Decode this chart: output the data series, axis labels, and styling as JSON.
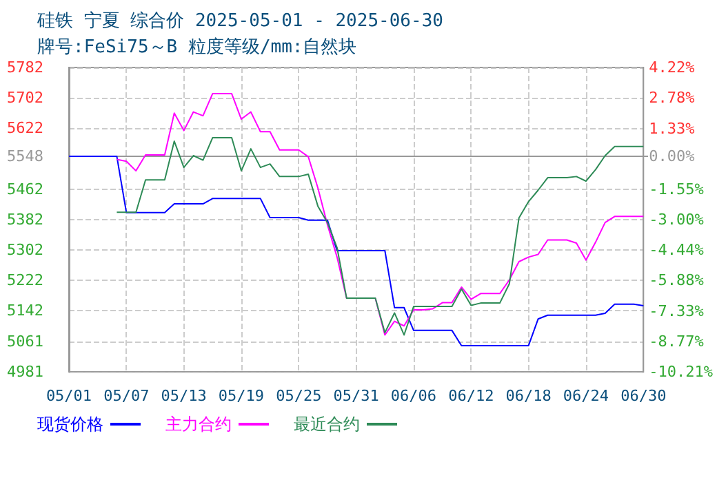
{
  "chart_data": {
    "type": "line",
    "title": "硅铁 宁夏 综合价 2025-05-01 - 2025-06-30",
    "subtitle": "牌号:FeSi75～B 粒度等级/mm:自然块",
    "x": [
      "2025-05-01",
      "2025-05-02",
      "2025-05-03",
      "2025-05-04",
      "2025-05-05",
      "2025-05-06",
      "2025-05-07",
      "2025-05-08",
      "2025-05-09",
      "2025-05-10",
      "2025-05-11",
      "2025-05-12",
      "2025-05-13",
      "2025-05-14",
      "2025-05-15",
      "2025-05-16",
      "2025-05-17",
      "2025-05-18",
      "2025-05-19",
      "2025-05-20",
      "2025-05-21",
      "2025-05-22",
      "2025-05-23",
      "2025-05-24",
      "2025-05-25",
      "2025-05-26",
      "2025-05-27",
      "2025-05-28",
      "2025-05-29",
      "2025-05-30",
      "2025-05-31",
      "2025-06-01",
      "2025-06-02",
      "2025-06-03",
      "2025-06-04",
      "2025-06-05",
      "2025-06-06",
      "2025-06-07",
      "2025-06-08",
      "2025-06-09",
      "2025-06-10",
      "2025-06-11",
      "2025-06-12",
      "2025-06-13",
      "2025-06-14",
      "2025-06-15",
      "2025-06-16",
      "2025-06-17",
      "2025-06-18",
      "2025-06-19",
      "2025-06-20",
      "2025-06-21",
      "2025-06-22",
      "2025-06-23",
      "2025-06-24",
      "2025-06-25",
      "2025-06-26",
      "2025-06-27",
      "2025-06-28",
      "2025-06-29",
      "2025-06-30"
    ],
    "series": [
      {
        "name": "现货价格",
        "color": "#0000ff",
        "values": [
          5548,
          5548,
          5548,
          5548,
          5548,
          5548,
          5400,
          5400,
          5400,
          5400,
          5400,
          5423,
          5423,
          5423,
          5423,
          5437,
          5437,
          5437,
          5437,
          5437,
          5437,
          5387,
          5387,
          5387,
          5387,
          5380,
          5380,
          5380,
          5300,
          5300,
          5300,
          5300,
          5300,
          5300,
          5150,
          5150,
          5090,
          5090,
          5090,
          5090,
          5090,
          5050,
          5050,
          5050,
          5050,
          5050,
          5050,
          5050,
          5050,
          5120,
          5130,
          5130,
          5130,
          5130,
          5130,
          5130,
          5135,
          5159,
          5159,
          5159,
          5155
        ]
      },
      {
        "name": "主力合约",
        "color": "#ff00ff",
        "values": [
          null,
          null,
          null,
          null,
          null,
          5540,
          5535,
          5510,
          5552,
          5552,
          5552,
          5662,
          5616,
          5665,
          5655,
          5713,
          5713,
          5713,
          5646,
          5665,
          5613,
          5613,
          5565,
          5565,
          5565,
          5547,
          5465,
          5368,
          5283,
          5175,
          5175,
          5175,
          5175,
          5078,
          5114,
          5102,
          5144,
          5144,
          5147,
          5163,
          5163,
          5204,
          5172,
          5187,
          5187,
          5187,
          5223,
          5271,
          5283,
          5290,
          5328,
          5328,
          5328,
          5320,
          5275,
          5322,
          5374,
          5390,
          5390,
          5390,
          5390
        ]
      },
      {
        "name": "最近合约",
        "color": "#2e8b57",
        "values": [
          null,
          null,
          null,
          null,
          null,
          5401,
          5401,
          5401,
          5486,
          5486,
          5486,
          5588,
          5519,
          5550,
          5538,
          5597,
          5597,
          5597,
          5510,
          5568,
          5519,
          5528,
          5495,
          5495,
          5495,
          5501,
          5417,
          5374,
          5308,
          5175,
          5175,
          5175,
          5175,
          5084,
          5136,
          5078,
          5153,
          5153,
          5153,
          5153,
          5153,
          5199,
          5156,
          5162,
          5162,
          5162,
          5213,
          5386,
          5429,
          5459,
          5492,
          5492,
          5492,
          5495,
          5483,
          5513,
          5550,
          5574,
          5574,
          5574,
          5574
        ]
      }
    ],
    "xlim": [
      "2025-05-01",
      "2025-06-30"
    ],
    "xticks": [
      {
        "value": "2025-05-01",
        "label": "05/01"
      },
      {
        "value": "2025-05-07",
        "label": "05/07"
      },
      {
        "value": "2025-05-13",
        "label": "05/13"
      },
      {
        "value": "2025-05-19",
        "label": "05/19"
      },
      {
        "value": "2025-05-25",
        "label": "05/25"
      },
      {
        "value": "2025-05-31",
        "label": "05/31"
      },
      {
        "value": "2025-06-06",
        "label": "06/06"
      },
      {
        "value": "2025-06-12",
        "label": "06/12"
      },
      {
        "value": "2025-06-18",
        "label": "06/18"
      },
      {
        "value": "2025-06-24",
        "label": "06/24"
      },
      {
        "value": "2025-06-30",
        "label": "06/30"
      }
    ],
    "ylim": [
      4981,
      5782
    ],
    "yticks": [
      4981,
      5061,
      5142,
      5222,
      5302,
      5382,
      5462,
      5548,
      5622,
      5702,
      5782
    ],
    "y2lim": [
      -10.21,
      4.22
    ],
    "y2ticks": [
      {
        "value": -10.21,
        "label": "-10.21%"
      },
      {
        "value": -8.77,
        "label": "-8.77%"
      },
      {
        "value": -7.33,
        "label": "-7.33%"
      },
      {
        "value": -5.88,
        "label": "-5.88%"
      },
      {
        "value": -4.44,
        "label": "-4.44%"
      },
      {
        "value": -3.0,
        "label": "-3.00%"
      },
      {
        "value": -1.55,
        "label": "-1.55%"
      },
      {
        "value": 0,
        "label": "0.00%"
      },
      {
        "value": 1.33,
        "label": "1.33%"
      },
      {
        "value": 2.78,
        "label": "2.78%"
      },
      {
        "value": 4.22,
        "label": "4.22%"
      }
    ],
    "ref_lines": [
      {
        "axis": "y",
        "value": 5548,
        "color": "#999999"
      }
    ],
    "grid": true,
    "legend": "bottom left"
  }
}
